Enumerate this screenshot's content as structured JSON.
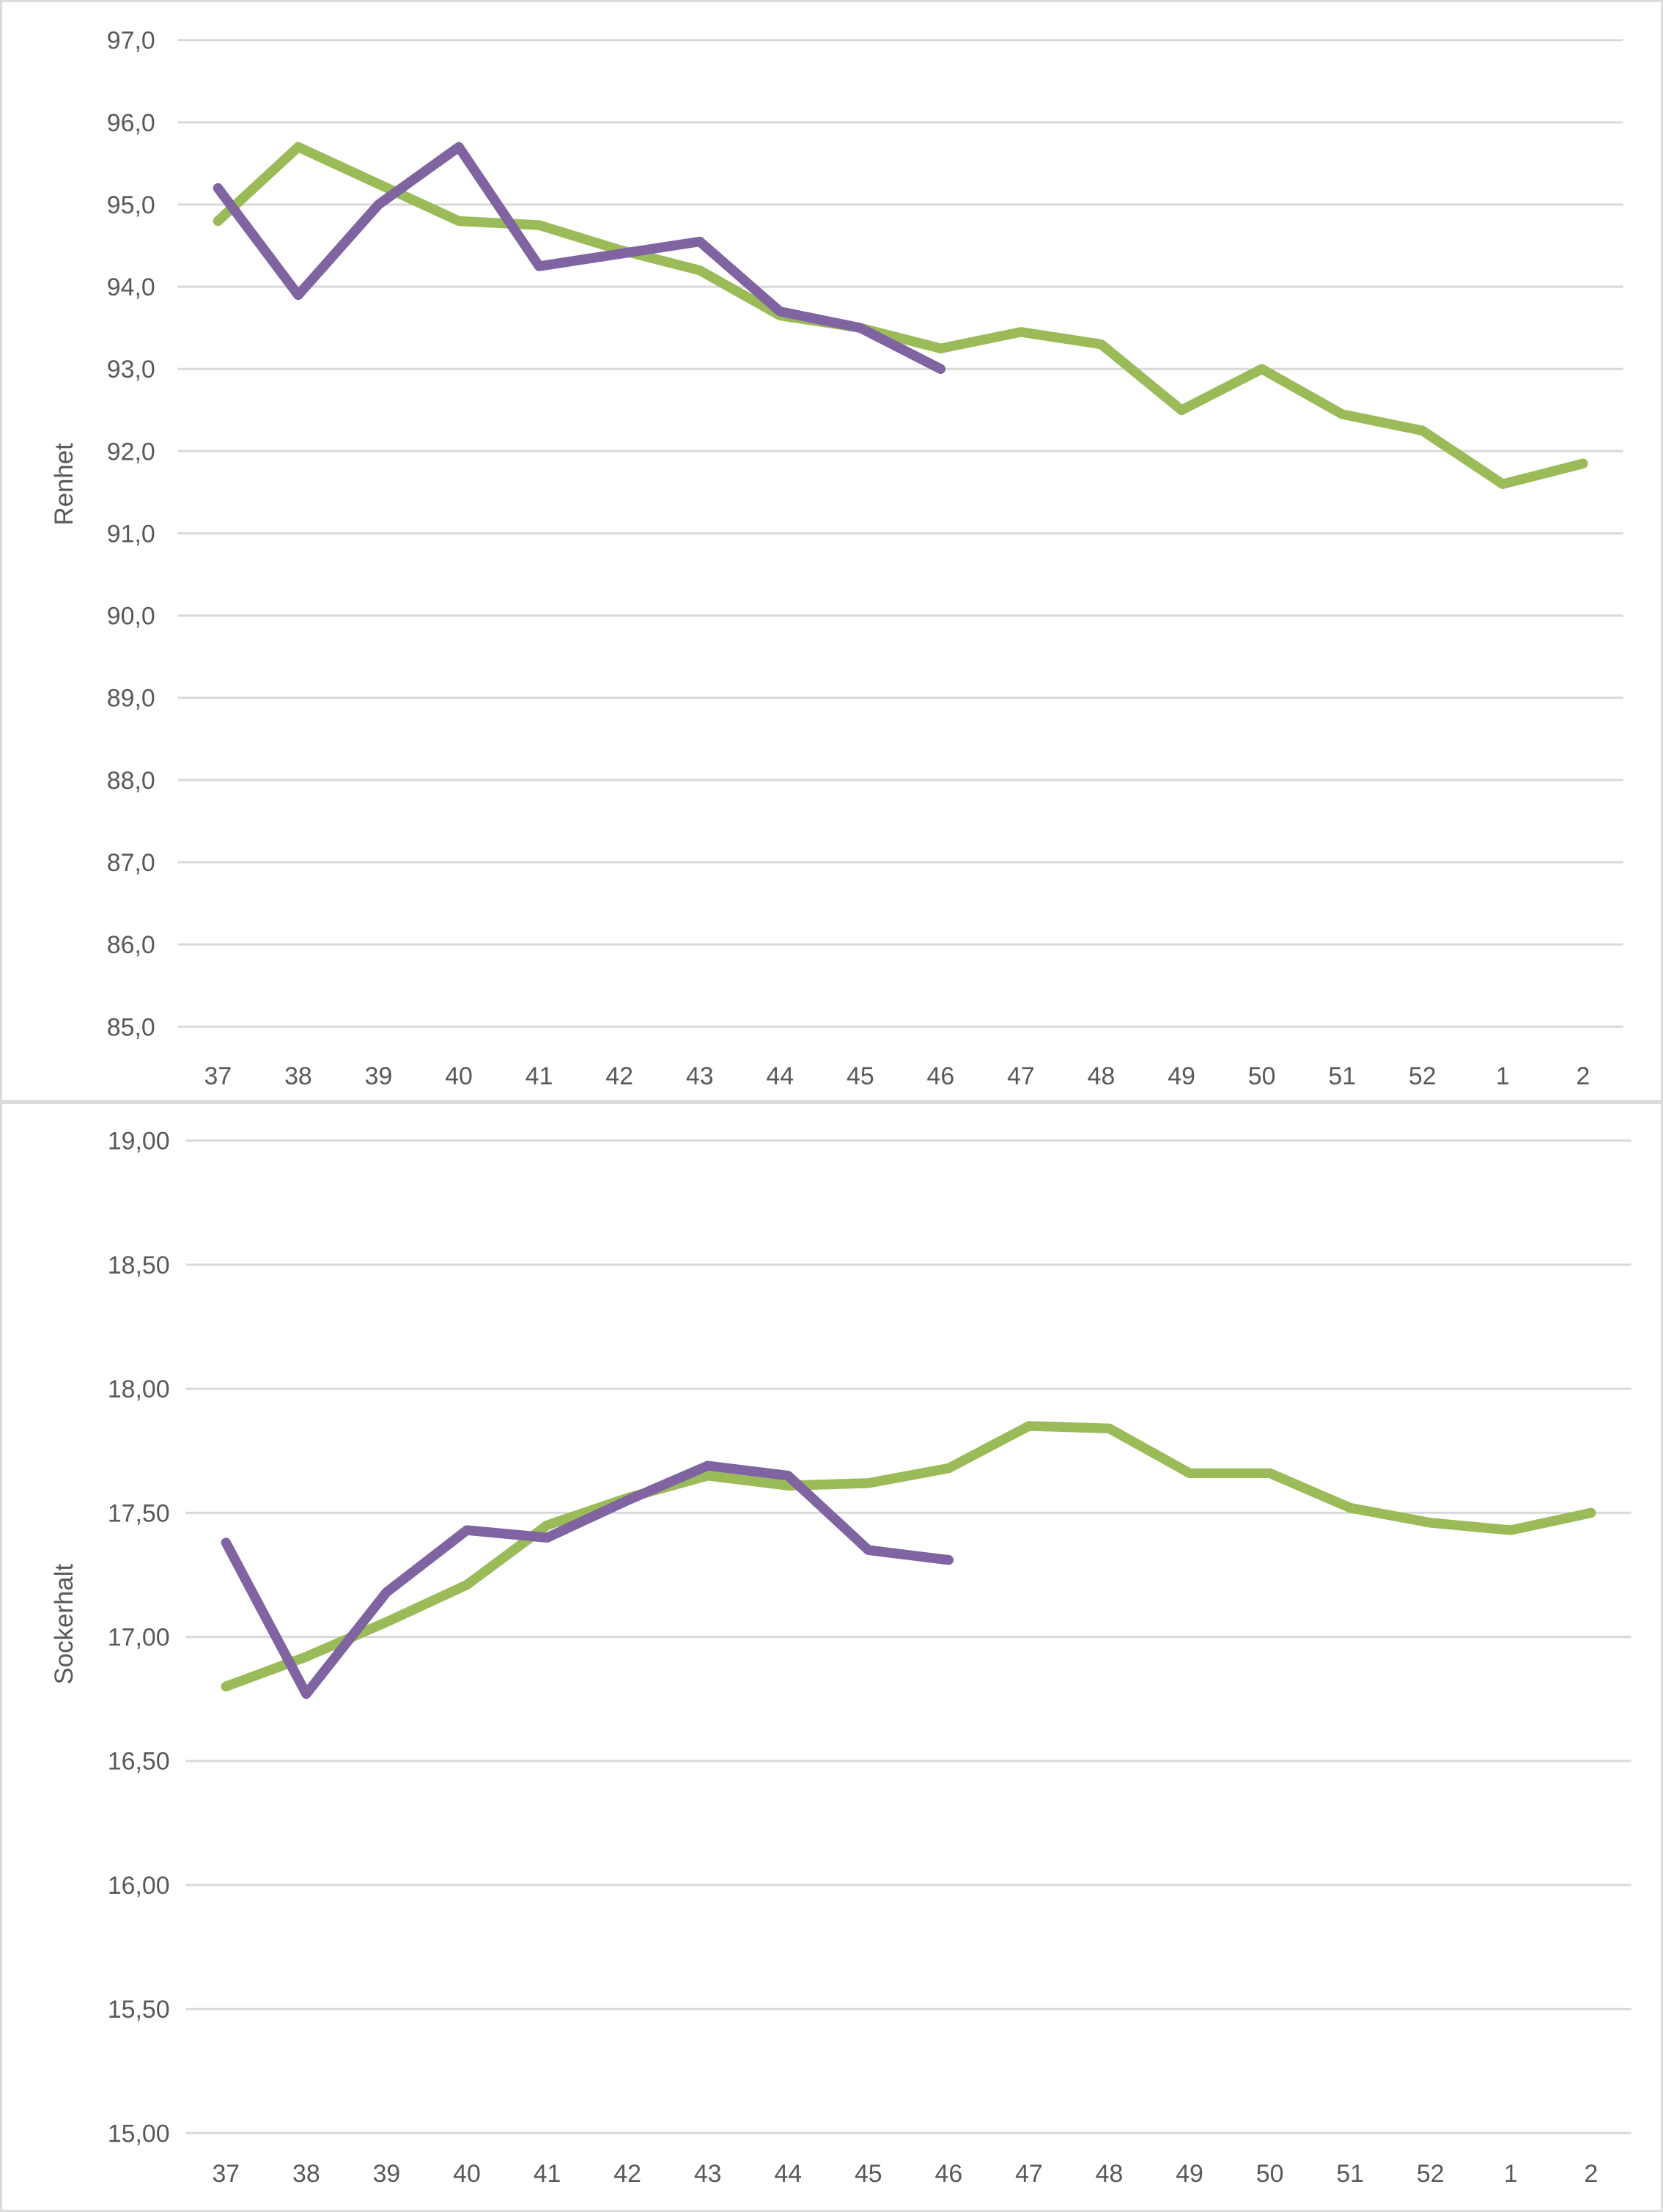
{
  "page": {
    "background": "#ffffff",
    "panel_border_color": "#dcdcdc",
    "gridline_color": "#d9d9d9",
    "text_color": "#595959"
  },
  "chart_data": [
    {
      "type": "line",
      "title": "",
      "xlabel": "",
      "ylabel": "Renhet",
      "legend": "none",
      "grid": true,
      "categories": [
        "37",
        "38",
        "39",
        "40",
        "41",
        "42",
        "43",
        "44",
        "45",
        "46",
        "47",
        "48",
        "49",
        "50",
        "51",
        "52",
        "1",
        "2"
      ],
      "y_axis": {
        "min": 85.0,
        "max": 97.0,
        "step": 1.0,
        "tick_labels": [
          "97,0",
          "96,0",
          "95,0",
          "94,0",
          "93,0",
          "92,0",
          "91,0",
          "90,0",
          "89,0",
          "88,0",
          "87,0",
          "86,0",
          "85,0"
        ]
      },
      "series": [
        {
          "name": "green-line-current-season",
          "color": "#9BBB59",
          "values": [
            94.8,
            95.7,
            95.25,
            94.8,
            94.75,
            94.45,
            94.2,
            93.65,
            93.5,
            93.25,
            93.45,
            93.3,
            92.5,
            93.0,
            92.45,
            92.25,
            91.6,
            91.85
          ]
        },
        {
          "name": "purple-line-previous-season",
          "color": "#8064A2",
          "values": [
            95.2,
            93.9,
            95.0,
            95.7,
            94.25,
            94.4,
            94.55,
            93.7,
            93.5,
            93.0
          ]
        }
      ]
    },
    {
      "type": "line",
      "title": "",
      "xlabel": "",
      "ylabel": "Sockerhalt",
      "legend": "none",
      "grid": true,
      "categories": [
        "37",
        "38",
        "39",
        "40",
        "41",
        "42",
        "43",
        "44",
        "45",
        "46",
        "47",
        "48",
        "49",
        "50",
        "51",
        "52",
        "1",
        "2"
      ],
      "y_axis": {
        "min": 15.0,
        "max": 19.0,
        "step": 0.5,
        "tick_labels": [
          "19,00",
          "18,50",
          "18,00",
          "17,50",
          "17,00",
          "16,50",
          "16,00",
          "15,50",
          "15,00"
        ]
      },
      "series": [
        {
          "name": "green-line-current-season",
          "color": "#9BBB59",
          "values": [
            16.8,
            16.92,
            17.06,
            17.21,
            17.45,
            17.56,
            17.65,
            17.61,
            17.62,
            17.68,
            17.85,
            17.84,
            17.66,
            17.66,
            17.52,
            17.46,
            17.43,
            17.5
          ]
        },
        {
          "name": "purple-line-previous-season",
          "color": "#8064A2",
          "values": [
            17.38,
            16.77,
            17.18,
            17.43,
            17.4,
            17.55,
            17.69,
            17.65,
            17.35,
            17.31
          ]
        }
      ]
    }
  ]
}
